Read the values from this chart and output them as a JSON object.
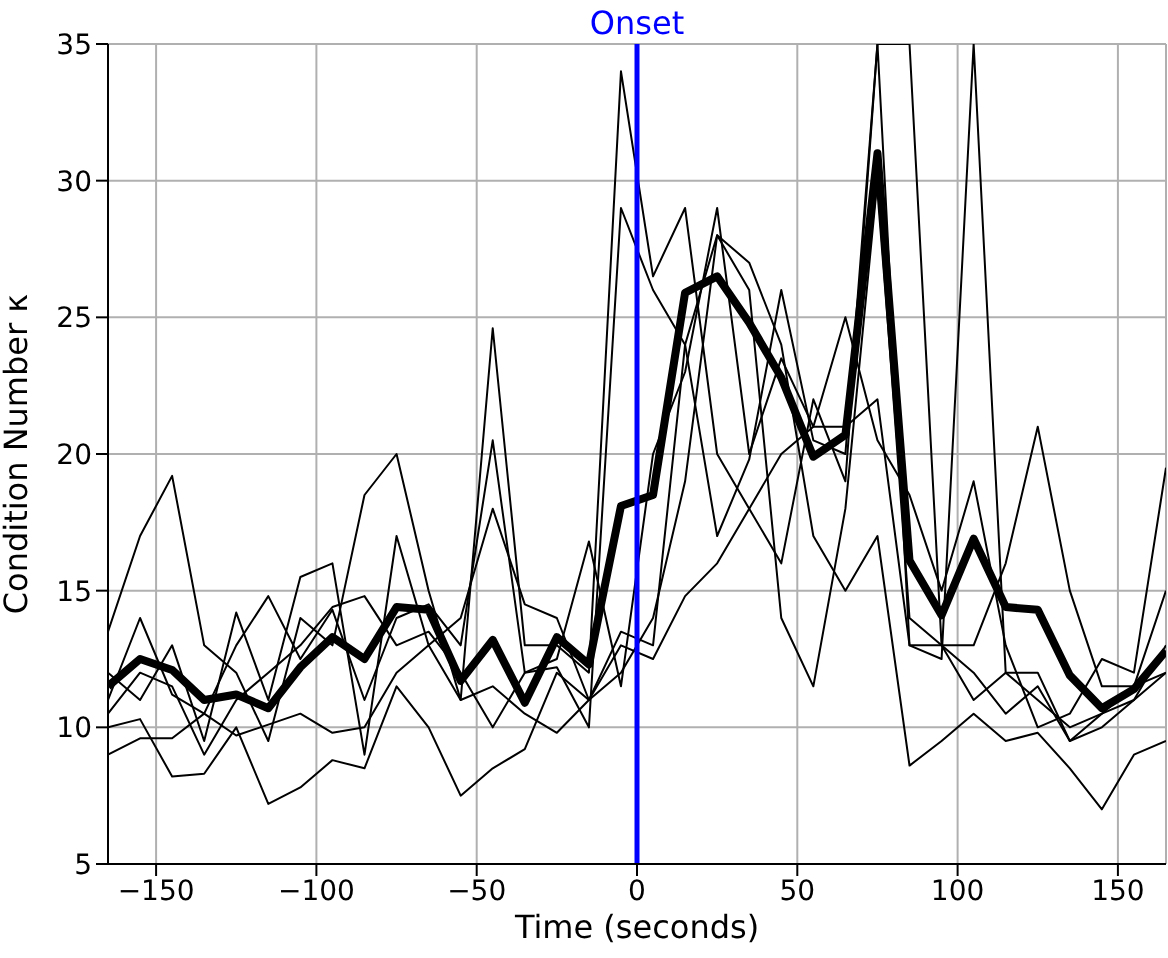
{
  "chart_data": {
    "type": "line",
    "xlabel": "Time (seconds)",
    "ylabel": "Condition Number κ",
    "x": [
      -165,
      -155,
      -145,
      -135,
      -125,
      -115,
      -105,
      -95,
      -85,
      -75,
      -65,
      -55,
      -45,
      -35,
      -25,
      -15,
      -5,
      5,
      15,
      25,
      35,
      45,
      55,
      65,
      75,
      85,
      95,
      105,
      115,
      125,
      135,
      145,
      155,
      165
    ],
    "series": [
      {
        "color": "#000000",
        "values": [
          11.5,
          12.5,
          12.1,
          11.0,
          11.2,
          10.7,
          12.2,
          13.3,
          12.5,
          14.4,
          14.3,
          11.7,
          13.2,
          10.9,
          13.3,
          12.3,
          18.1,
          18.5,
          25.9,
          26.5,
          24.8,
          22.8,
          19.9,
          20.7,
          31.0,
          16.1,
          14.1,
          16.9,
          14.4,
          14.3,
          11.9,
          10.7,
          11.4,
          12.8
        ]
      },
      {
        "color": "#000000",
        "values": [
          13.5,
          17,
          19.2,
          13,
          12,
          9.5,
          14,
          13,
          18.5,
          20,
          15,
          11,
          24.6,
          13,
          13,
          12,
          34,
          26.5,
          29,
          20,
          18,
          16,
          22,
          19,
          35,
          13,
          12.5,
          35,
          12,
          12,
          9.5,
          10,
          11,
          12
        ]
      },
      {
        "color": "#000000",
        "values": [
          9,
          9.6,
          9.6,
          10.5,
          9.7,
          10.1,
          10.5,
          9.8,
          10,
          12,
          13,
          11,
          11.5,
          10.5,
          9.8,
          11,
          12,
          14,
          19,
          28,
          27,
          24,
          17,
          15,
          17,
          8.6,
          9.5,
          10.5,
          9.5,
          9.8,
          8.5,
          7,
          9,
          9.5
        ]
      },
      {
        "color": "#000000",
        "values": [
          10,
          10.3,
          8.2,
          8.3,
          10,
          7.2,
          7.8,
          8.8,
          8.5,
          11.5,
          10,
          7.5,
          8.5,
          9.2,
          12,
          11,
          13,
          12.5,
          14.8,
          16,
          18,
          20,
          21,
          21,
          22,
          13,
          13,
          11,
          12,
          11,
          10,
          10.5,
          11.5,
          12
        ]
      },
      {
        "color": "#000000",
        "values": [
          12,
          11,
          13,
          9.5,
          14.2,
          11,
          15.5,
          16,
          9,
          17,
          13,
          14,
          18,
          14.5,
          14,
          11,
          13.5,
          13,
          24,
          28,
          26,
          14,
          11.5,
          18,
          30,
          14,
          13,
          12,
          10.5,
          11.5,
          9.5,
          10.5,
          11,
          13
        ]
      },
      {
        "color": "#000000",
        "values": [
          11,
          14,
          11.2,
          10.5,
          13,
          14.8,
          12.5,
          14.3,
          11,
          14,
          14.5,
          13,
          20.5,
          12,
          12.5,
          16.8,
          11.5,
          20,
          23,
          29,
          20,
          23.5,
          21,
          25,
          20.5,
          18.5,
          15,
          19,
          13,
          10,
          10.5,
          12.5,
          12,
          19.5
        ]
      },
      {
        "color": "#000000",
        "values": [
          10.5,
          12,
          11.5,
          9,
          11,
          12,
          13,
          14.4,
          14.8,
          13,
          13.5,
          12,
          10,
          12,
          12.2,
          10,
          29,
          26,
          24,
          17,
          19.8,
          26,
          20.5,
          20,
          35,
          35,
          13,
          13,
          16,
          21,
          15,
          11.5,
          11.5,
          15
        ]
      }
    ],
    "xlim": [
      -165,
      165
    ],
    "xticks": [
      -150,
      -100,
      -50,
      0,
      50,
      100,
      150
    ],
    "ylim": [
      5,
      35
    ],
    "yticks": [
      5,
      10,
      15,
      20,
      25,
      30,
      35
    ],
    "grid": true,
    "legend": false,
    "marker": "none",
    "line_style": "solid",
    "ref_lines": [
      {
        "axis": "x",
        "value": 0,
        "label": "Onset",
        "color": "#0000ff",
        "line_style": "solid"
      }
    ]
  }
}
